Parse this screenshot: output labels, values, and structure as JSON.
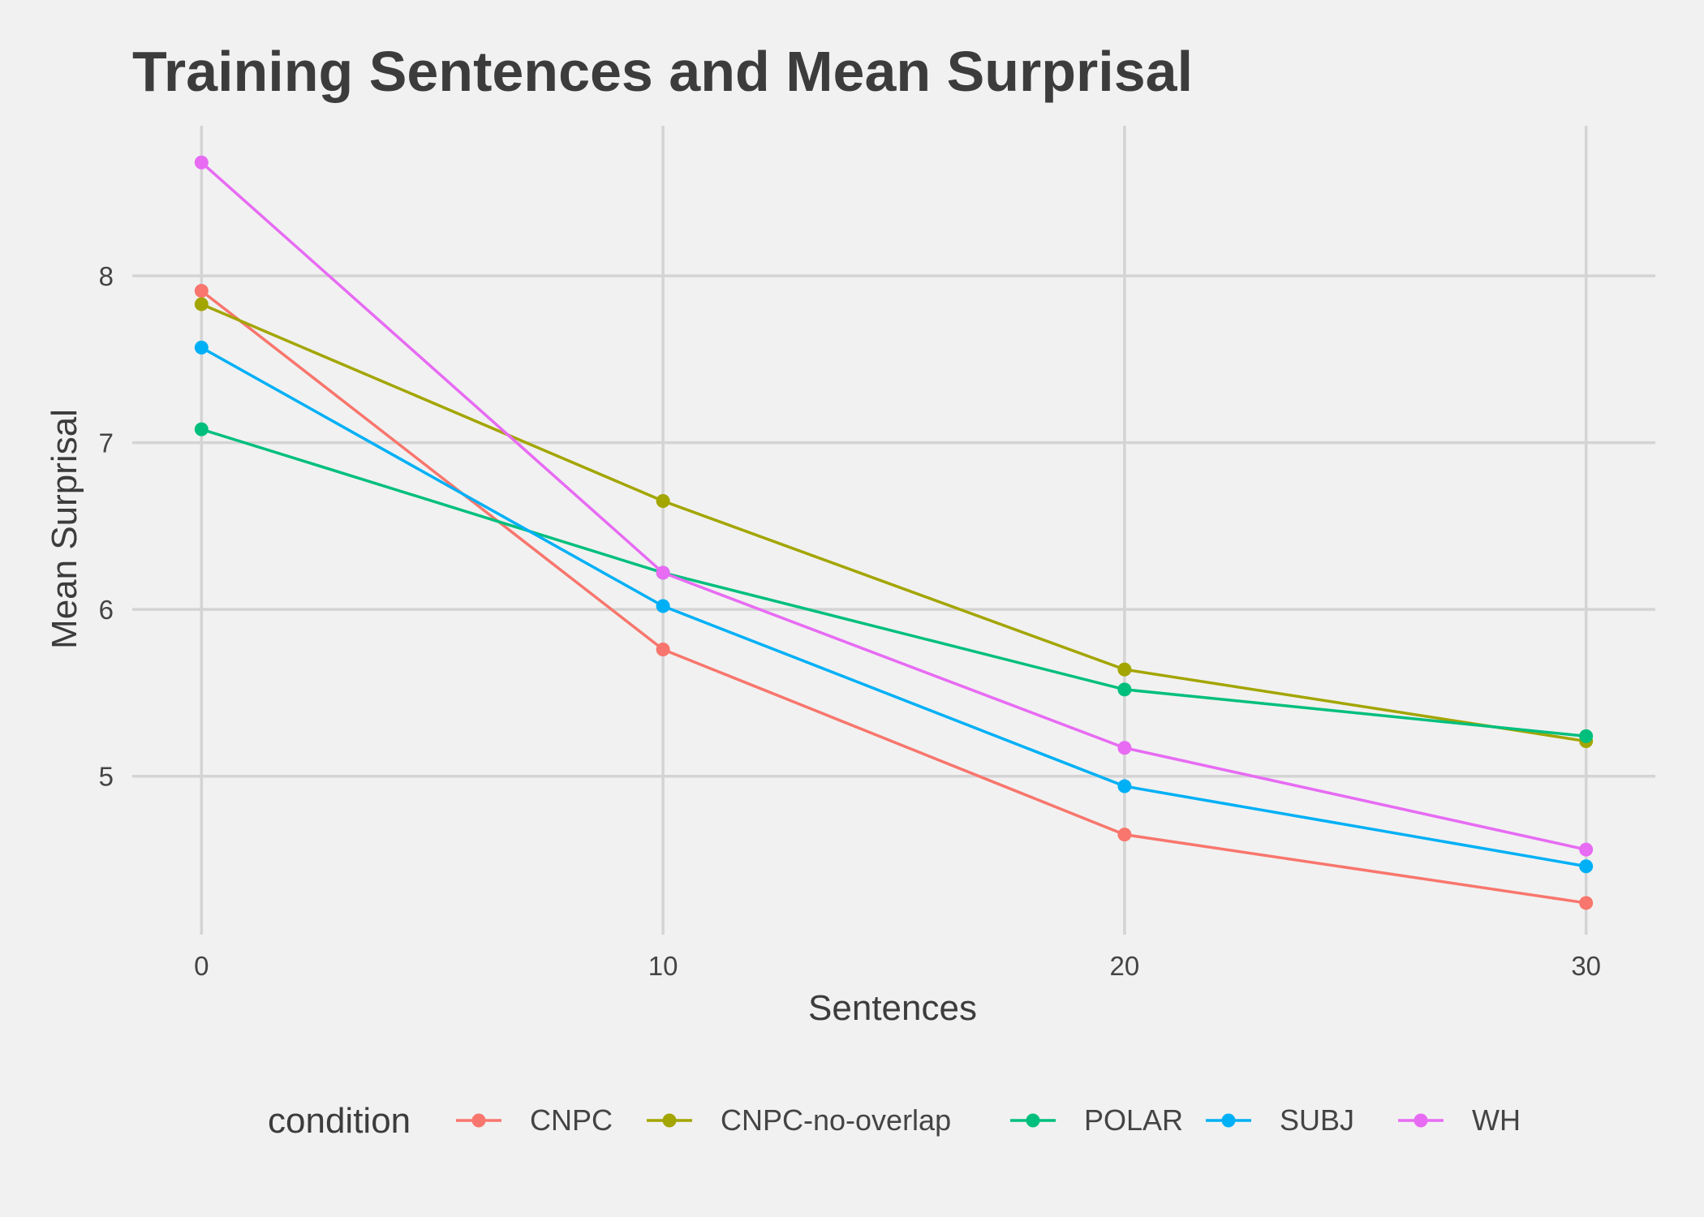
{
  "chart_data": {
    "type": "line",
    "title": "Training Sentences and Mean Surprisal",
    "xlabel": "Sentences",
    "ylabel": "Mean Surprisal",
    "x": [
      0,
      10,
      20,
      30
    ],
    "xticks": [
      0,
      10,
      20,
      30
    ],
    "yticks": [
      5,
      6,
      7,
      8
    ],
    "xlim": [
      -1.5,
      31.5
    ],
    "ylim": [
      4.05,
      8.9
    ],
    "grid": true,
    "legend": {
      "title": "condition",
      "position": "bottom"
    },
    "series": [
      {
        "name": "CNPC",
        "color": "#F8766D",
        "values": [
          7.91,
          5.76,
          4.65,
          4.24
        ]
      },
      {
        "name": "CNPC-no-overlap",
        "color": "#A3A500",
        "values": [
          7.83,
          6.65,
          5.64,
          5.21
        ]
      },
      {
        "name": "POLAR",
        "color": "#00BF7D",
        "values": [
          7.08,
          6.22,
          5.52,
          5.24
        ]
      },
      {
        "name": "SUBJ",
        "color": "#00B0F6",
        "values": [
          7.57,
          6.02,
          4.94,
          4.46
        ]
      },
      {
        "name": "WH",
        "color": "#E76BF3",
        "values": [
          8.68,
          6.22,
          5.17,
          4.56
        ]
      }
    ]
  }
}
